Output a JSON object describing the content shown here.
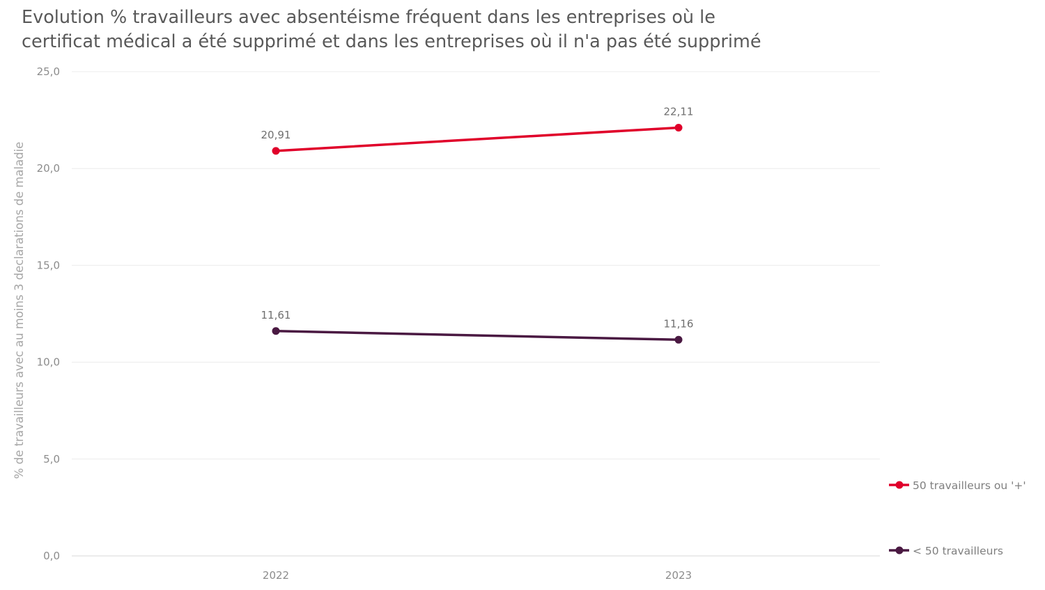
{
  "chart_data": {
    "type": "line",
    "title_lines": [
      "Evolution % travailleurs avec absentéisme fréquent dans les entreprises où le",
      "certificat médical a été supprimé et dans les entreprises où il n'a pas été supprimé"
    ],
    "ylabel": "% de travailleurs avec au moins 3 declarations de maladie",
    "xlabel": "",
    "categories": [
      "2022",
      "2023"
    ],
    "ylim": [
      0,
      25
    ],
    "yticks": [
      "0,0",
      "5,0",
      "10,0",
      "15,0",
      "20,0",
      "25,0"
    ],
    "grid": true,
    "legend_position": "right",
    "series": [
      {
        "name": "50 travailleurs ou '+'",
        "values": [
          20.91,
          22.11
        ],
        "labels": [
          "20,91",
          "22,11"
        ],
        "color": "#e0002a"
      },
      {
        "name": "< 50 travailleurs",
        "values": [
          11.61,
          11.16
        ],
        "labels": [
          "11,61",
          "11,16"
        ],
        "color": "#4a1942"
      }
    ]
  }
}
